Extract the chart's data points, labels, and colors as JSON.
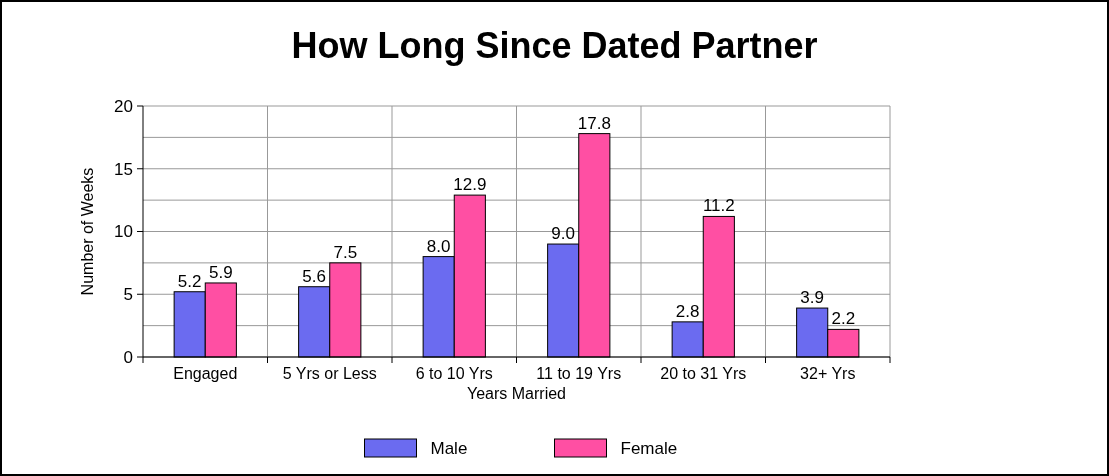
{
  "chart_data": {
    "type": "bar",
    "title": "How Long Since Dated Partner",
    "xlabel": "Years Married",
    "ylabel": "Number of Weeks",
    "categories": [
      "Engaged",
      "5 Yrs or Less",
      "6 to 10 Yrs",
      "11 to 19 Yrs",
      "20 to 31 Yrs",
      "32+ Yrs"
    ],
    "series": [
      {
        "name": "Male",
        "color": "#6b6bf0",
        "values": [
          5.2,
          5.6,
          8.0,
          9.0,
          2.8,
          3.9
        ],
        "value_labels": [
          "5.2",
          "5.6",
          "8.0",
          "9.0",
          "2.8",
          "3.9"
        ]
      },
      {
        "name": "Female",
        "color": "#ff4fa3",
        "values": [
          5.9,
          7.5,
          12.9,
          17.8,
          11.2,
          2.2
        ],
        "value_labels": [
          "5.9",
          "7.5",
          "12.9",
          "17.8",
          "11.2",
          "2.2"
        ]
      }
    ],
    "ylim": [
      0,
      20
    ],
    "yticks": [
      0,
      {
        "value": 2.5,
        "label": null
      },
      5,
      {
        "value": 7.5,
        "label": null
      },
      10,
      {
        "value": 12.5,
        "label": null
      },
      15,
      {
        "value": 17.5,
        "label": null
      },
      20
    ],
    "grid": true,
    "legend": "bottom"
  }
}
